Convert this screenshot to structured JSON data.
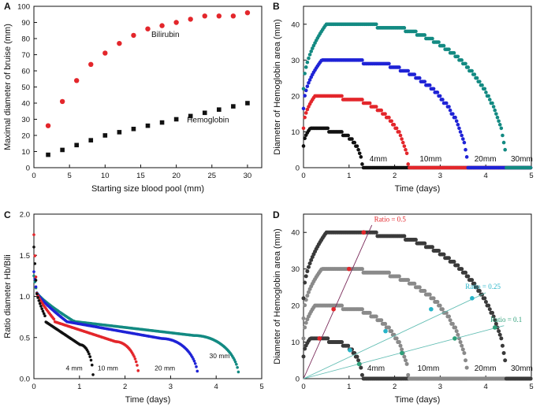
{
  "colors": {
    "black": "#111111",
    "red": "#e3262b",
    "blue": "#1f23d6",
    "teal": "#138a82",
    "gray": "#8a8a8a",
    "dark": "#3a3a3a",
    "cyan": "#27b4c8",
    "green": "#2fa07a",
    "line_teal": "#61bdb3",
    "purple": "#7a2a5a"
  },
  "chart_data": [
    {
      "panel": "A",
      "type": "scatter",
      "xlabel": "Starting size blood pool (mm)",
      "ylabel": "Maximal diameter of bruise (mm)",
      "xlim": [
        0,
        32
      ],
      "ylim": [
        0,
        100
      ],
      "xticks": [
        0,
        5,
        10,
        15,
        20,
        25,
        30
      ],
      "yticks": [
        0,
        10,
        20,
        30,
        40,
        50,
        60,
        70,
        80,
        90,
        100
      ],
      "series": [
        {
          "name": "Bilirubin",
          "color": "red",
          "marker": "circle",
          "x": [
            2,
            4,
            6,
            8,
            10,
            12,
            14,
            16,
            18,
            20,
            22,
            24,
            26,
            28,
            30
          ],
          "y": [
            26,
            41,
            54,
            64,
            71,
            77,
            82,
            86,
            88,
            90,
            92,
            94,
            94,
            94,
            96
          ]
        },
        {
          "name": "Hemoglobin",
          "color": "black",
          "marker": "square",
          "x": [
            2,
            4,
            6,
            8,
            10,
            12,
            14,
            16,
            18,
            20,
            22,
            24,
            26,
            28,
            30
          ],
          "y": [
            8,
            11,
            14,
            17,
            20,
            22,
            24,
            26,
            28,
            30,
            32,
            34,
            36,
            38,
            40
          ]
        }
      ],
      "annotations": [
        {
          "text": "Bilirubin",
          "x": 16.5,
          "y": 81
        },
        {
          "text": "Hemoglobin",
          "x": 21.5,
          "y": 28
        }
      ]
    },
    {
      "panel": "B",
      "type": "scatter",
      "xlabel": "Time (days)",
      "ylabel": "Diameter of Hemoglobin area (mm)",
      "xlim": [
        0,
        5
      ],
      "ylim": [
        0,
        45
      ],
      "xticks": [
        0,
        1,
        2,
        3,
        4,
        5
      ],
      "yticks": [
        0,
        10,
        20,
        30,
        40
      ],
      "series": [
        {
          "name": "4mm",
          "color": "black",
          "peak": 11,
          "rise": 0.15,
          "plateau_end": 0.55,
          "end": 1.3
        },
        {
          "name": "10mm",
          "color": "red",
          "peak": 20,
          "rise": 0.25,
          "plateau_end": 0.85,
          "end": 2.3
        },
        {
          "name": "20mm",
          "color": "blue",
          "peak": 30,
          "rise": 0.4,
          "plateau_end": 1.3,
          "end": 3.6
        },
        {
          "name": "30mm",
          "color": "teal",
          "peak": 40,
          "rise": 0.5,
          "plateau_end": 1.6,
          "end": 4.45
        }
      ],
      "annotations": [
        {
          "text": "4mm",
          "x": 1.45,
          "y": 1.8
        },
        {
          "text": "10mm",
          "x": 2.55,
          "y": 1.8
        },
        {
          "text": "20mm",
          "x": 3.75,
          "y": 1.8
        },
        {
          "text": "30mm",
          "x": 4.55,
          "y": 1.8
        }
      ]
    },
    {
      "panel": "C",
      "type": "scatter",
      "xlabel": "Time (days)",
      "ylabel": "Ratio diameter Hb/Bili",
      "xlim": [
        0,
        5
      ],
      "ylim": [
        0,
        2.0
      ],
      "xticks": [
        0,
        1,
        2,
        3,
        4,
        5
      ],
      "yticks": [
        0.0,
        0.5,
        1.0,
        1.5,
        2.0
      ],
      "series": [
        {
          "name": "4 mm",
          "color": "black",
          "start": 1.6,
          "end": 1.3,
          "mid": 0.55
        },
        {
          "name": "10 mm",
          "color": "red",
          "start": 1.75,
          "end": 2.3,
          "mid": 0.6
        },
        {
          "name": "20 mm",
          "color": "blue",
          "start": 1.3,
          "end": 3.6,
          "mid": 0.65
        },
        {
          "name": "30 mm",
          "color": "teal",
          "start": 1.25,
          "end": 4.5,
          "mid": 0.7
        }
      ],
      "annotations": [
        {
          "text": "4 mm",
          "x": 0.7,
          "y": 0.1
        },
        {
          "text": "10 mm",
          "x": 1.4,
          "y": 0.1
        },
        {
          "text": "20 mm",
          "x": 2.65,
          "y": 0.1
        },
        {
          "text": "30 mm",
          "x": 3.85,
          "y": 0.25
        }
      ]
    },
    {
      "panel": "D",
      "type": "scatter",
      "xlabel": "Time (days)",
      "ylabel": "Diameter of Hemoglobin area (mm)",
      "xlim": [
        0,
        5
      ],
      "ylim": [
        0,
        45
      ],
      "xticks": [
        0,
        1,
        2,
        3,
        4,
        5
      ],
      "yticks": [
        0,
        10,
        20,
        30,
        40
      ],
      "series": [
        {
          "name": "4mm",
          "color": "dark",
          "peak": 11,
          "rise": 0.15,
          "plateau_end": 0.55,
          "end": 1.3
        },
        {
          "name": "10mm",
          "color": "gray",
          "peak": 20,
          "rise": 0.25,
          "plateau_end": 0.85,
          "end": 2.3
        },
        {
          "name": "20mm",
          "color": "gray",
          "peak": 30,
          "rise": 0.4,
          "plateau_end": 1.3,
          "end": 3.6
        },
        {
          "name": "30mm",
          "color": "dark",
          "peak": 40,
          "rise": 0.5,
          "plateau_end": 1.6,
          "end": 4.45
        }
      ],
      "ratio_lines": [
        {
          "text": "Ratio = 0.5",
          "color": "purple",
          "x1": 0,
          "y1": 0,
          "x2": 1.5,
          "y2": 42,
          "label_x": 1.55,
          "label_y": 43
        },
        {
          "text": "Ratio = 0.25",
          "color": "line_teal",
          "x1": 0,
          "y1": 0,
          "x2": 4.0,
          "y2": 23.5,
          "label_x": 3.55,
          "label_y": 24.5
        },
        {
          "text": "Ratio = 0.1",
          "color": "line_teal",
          "x1": 0,
          "y1": 0,
          "x2": 4.4,
          "y2": 14.5,
          "label_x": 4.1,
          "label_y": 15.5
        }
      ],
      "markers": [
        {
          "color": "red",
          "x": 1.32,
          "y": 40
        },
        {
          "color": "red",
          "x": 1.0,
          "y": 30
        },
        {
          "color": "red",
          "x": 0.66,
          "y": 19
        },
        {
          "color": "red",
          "x": 0.35,
          "y": 11
        },
        {
          "color": "cyan",
          "x": 3.7,
          "y": 22
        },
        {
          "color": "cyan",
          "x": 2.8,
          "y": 19
        },
        {
          "color": "cyan",
          "x": 1.8,
          "y": 13
        },
        {
          "color": "cyan",
          "x": 1.02,
          "y": 7.8
        },
        {
          "color": "green",
          "x": 4.2,
          "y": 14
        },
        {
          "color": "green",
          "x": 3.32,
          "y": 11
        },
        {
          "color": "green",
          "x": 2.16,
          "y": 7
        },
        {
          "color": "green",
          "x": 1.22,
          "y": 4
        }
      ],
      "annotations": [
        {
          "text": "4mm",
          "x": 1.4,
          "y": 2.2
        },
        {
          "text": "10mm",
          "x": 2.5,
          "y": 2.2
        },
        {
          "text": "20mm",
          "x": 3.75,
          "y": 2.2
        },
        {
          "text": "30mm",
          "x": 4.55,
          "y": 2.2
        }
      ]
    }
  ]
}
